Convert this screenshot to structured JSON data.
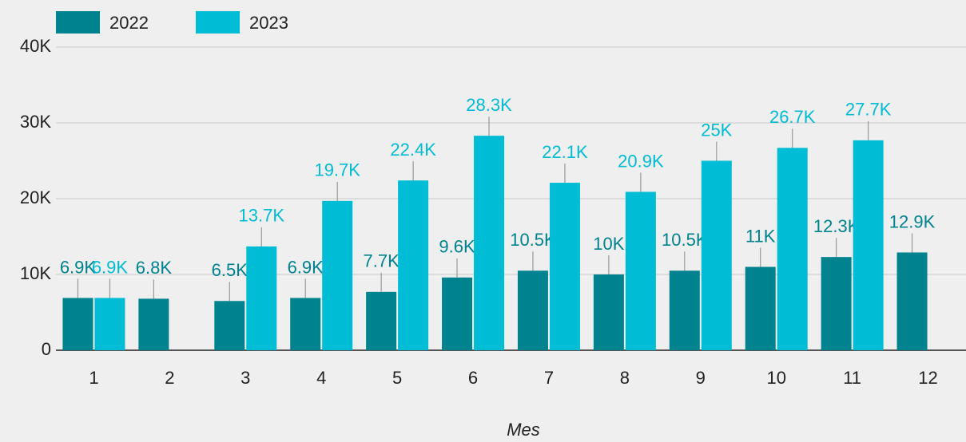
{
  "chart_data": {
    "type": "bar",
    "x_label": "Mes",
    "categories": [
      "1",
      "2",
      "3",
      "4",
      "5",
      "6",
      "7",
      "8",
      "9",
      "10",
      "11",
      "12"
    ],
    "series": [
      {
        "name": "2022",
        "color": "#00838f",
        "values": [
          6900,
          6800,
          6500,
          6900,
          7700,
          9600,
          10500,
          10000,
          10500,
          11000,
          12300,
          12900
        ],
        "value_labels": [
          "6.9K",
          "6.8K",
          "6.5K",
          "6.9K",
          "7.7K",
          "9.6K",
          "10.5K",
          "10K",
          "10.5K",
          "11K",
          "12.3K",
          "12.9K"
        ]
      },
      {
        "name": "2023",
        "color": "#00bcd4",
        "values": [
          6900,
          null,
          13700,
          19700,
          22400,
          28300,
          22100,
          20900,
          25000,
          26700,
          27700,
          null
        ],
        "value_labels": [
          "6.9K",
          null,
          "13.7K",
          "19.7K",
          "22.4K",
          "28.3K",
          "22.1K",
          "20.9K",
          "25K",
          "26.7K",
          "27.7K",
          null
        ]
      }
    ],
    "ylim": [
      0,
      40000
    ],
    "yticks": [
      0,
      {
        "value": 10000,
        "label": "10K"
      },
      {
        "value": 20000,
        "label": "20K"
      },
      {
        "value": 30000,
        "label": "30K"
      },
      {
        "value": 40000,
        "label": "40K"
      }
    ],
    "grid": true,
    "legend": "top-left"
  }
}
